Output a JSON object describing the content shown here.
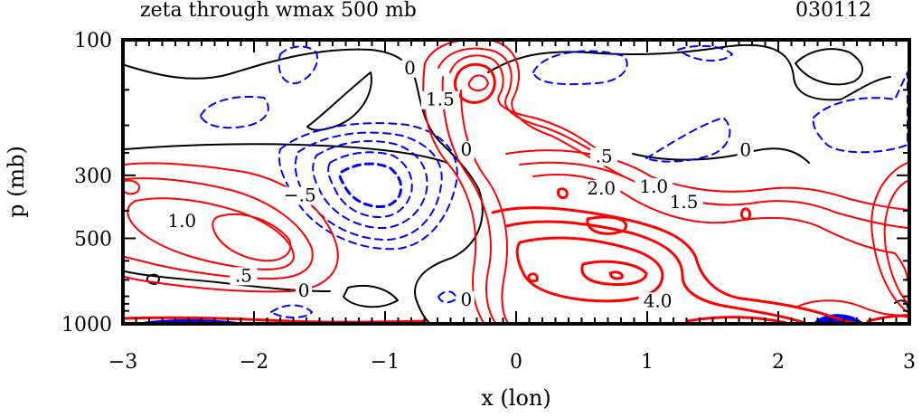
{
  "chart_data": {
    "type": "contour",
    "title": "zeta through wmax 500 mb",
    "date_label": "030112",
    "xlabel": "x (lon)",
    "ylabel": "p (mb)",
    "xlim": [
      -3,
      3
    ],
    "ylim": [
      1000,
      100
    ],
    "x_ticks": [
      "−3",
      "−2",
      "−1",
      "0",
      "1",
      "2",
      "3"
    ],
    "x_tick_values": [
      -3,
      -2,
      -1,
      0,
      1,
      2,
      3
    ],
    "y_ticks": [
      "100",
      "300",
      "500",
      "1000"
    ],
    "y_tick_values": [
      100,
      300,
      500,
      1000
    ],
    "y_scale": "log",
    "grid": false,
    "colors": {
      "positive": "#ff0000",
      "negative": "#0000ff",
      "zero": "#000000"
    },
    "contour_labels": [
      {
        "text": "0",
        "x": -0.81,
        "y": 130,
        "color": "#000000"
      },
      {
        "text": "1.5",
        "x": -0.58,
        "y": 168,
        "color": "#000000"
      },
      {
        "text": "0",
        "x": -0.38,
        "y": 252,
        "color": "#000000"
      },
      {
        "text": "−.5",
        "x": -1.65,
        "y": 365,
        "color": "#000000"
      },
      {
        "text": "1.0",
        "x": -2.55,
        "y": 450,
        "color": "#000000"
      },
      {
        "text": ".5",
        "x": -2.08,
        "y": 700,
        "color": "#000000"
      },
      {
        "text": "0",
        "x": -1.62,
        "y": 790,
        "color": "#000000"
      },
      {
        "text": "0",
        "x": -0.38,
        "y": 850,
        "color": "#000000"
      },
      {
        "text": ".5",
        "x": 0.67,
        "y": 266,
        "color": "#000000"
      },
      {
        "text": "2.0",
        "x": 0.65,
        "y": 345,
        "color": "#000000"
      },
      {
        "text": "1.0",
        "x": 1.05,
        "y": 340,
        "color": "#000000"
      },
      {
        "text": "1.5",
        "x": 1.28,
        "y": 385,
        "color": "#000000"
      },
      {
        "text": "0",
        "x": 1.75,
        "y": 253,
        "color": "#000000"
      },
      {
        "text": "4.0",
        "x": 1.08,
        "y": 860,
        "color": "#000000"
      }
    ]
  }
}
